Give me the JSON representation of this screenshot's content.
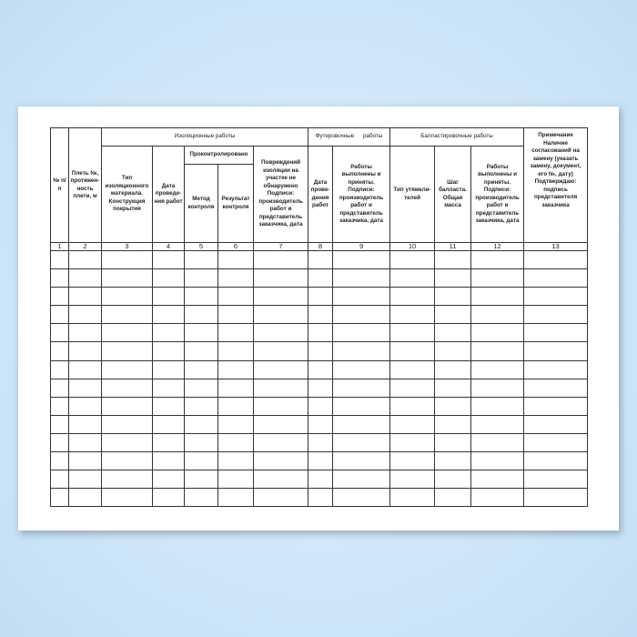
{
  "table": {
    "col_no": "№ п/п",
    "col_pipe": "Плеть №, протяжен-ность плети, м",
    "group_insulation": "Изоляционные работы",
    "col_material": "Тип изоляционного материала. Конструкция покрытия",
    "col_date_insul": "Дата проведе-ния работ",
    "group_controlled": "Проконтролировано",
    "col_method": "Метод контроля",
    "col_result": "Результат контроля",
    "col_damage": "Повреждений изоляции на участке не обнаружено Подписи: производитель работ и представитель заказчика, дата",
    "group_lining": "Футеровочные работы",
    "col_date_lining": "Дата прове-дения работ",
    "col_lining_accepted": "Работы выполнены и приняты. Подписи: производитель работ и представитель заказчика, дата",
    "group_ballast": "Балластировочные работы",
    "col_weight_type": "Тип утяжели-телей",
    "col_ballast_step": "Шаг балласта. Общая масса",
    "col_ballast_accepted": "Работы выполнены и приняты. Подписи: производитель работ и представитель заказчика, дата",
    "col_note": "Примечание Наличие согласований на замену (указать замену, документ, его №, дату) Подтверждаю: подпись представителя заказчика",
    "column_numbers": [
      "1",
      "2",
      "3",
      "4",
      "5",
      "6",
      "7",
      "8",
      "9",
      "10",
      "11",
      "12",
      "13"
    ],
    "empty_rows": 14
  }
}
